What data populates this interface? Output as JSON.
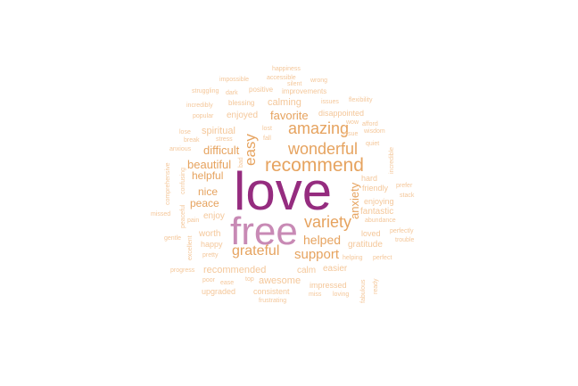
{
  "word_cloud": {
    "colors": {
      "primary": "#952c7f",
      "secondary": "#c88ab5",
      "mid": "#e6a35f",
      "light": "#f4c79a"
    },
    "words": [
      {
        "text": "love",
        "tier": "primary"
      },
      {
        "text": "free",
        "tier": "secondary"
      },
      {
        "text": "recommend",
        "tier": "mid"
      },
      {
        "text": "amazing",
        "tier": "mid"
      },
      {
        "text": "wonderful",
        "tier": "mid"
      },
      {
        "text": "variety",
        "tier": "mid"
      },
      {
        "text": "grateful",
        "tier": "mid"
      },
      {
        "text": "easy",
        "tier": "mid"
      },
      {
        "text": "support",
        "tier": "mid"
      },
      {
        "text": "helped",
        "tier": "mid"
      },
      {
        "text": "favorite",
        "tier": "mid"
      },
      {
        "text": "beautiful",
        "tier": "mid"
      },
      {
        "text": "difficult",
        "tier": "mid"
      },
      {
        "text": "helpful",
        "tier": "mid"
      },
      {
        "text": "peace",
        "tier": "mid"
      },
      {
        "text": "nice",
        "tier": "mid"
      },
      {
        "text": "anxiety",
        "tier": "mid"
      },
      {
        "text": "awesome",
        "tier": "light"
      },
      {
        "text": "recommended",
        "tier": "light"
      },
      {
        "text": "calming",
        "tier": "light"
      },
      {
        "text": "enjoyed",
        "tier": "light"
      },
      {
        "text": "spiritual",
        "tier": "light"
      },
      {
        "text": "fantastic",
        "tier": "light"
      },
      {
        "text": "gratitude",
        "tier": "light"
      },
      {
        "text": "calm",
        "tier": "light"
      },
      {
        "text": "easier",
        "tier": "light"
      },
      {
        "text": "worth",
        "tier": "light"
      },
      {
        "text": "enjoy",
        "tier": "light"
      },
      {
        "text": "disappointed",
        "tier": "light"
      },
      {
        "text": "impressed",
        "tier": "light"
      },
      {
        "text": "consistent",
        "tier": "light"
      },
      {
        "text": "friendly",
        "tier": "light"
      },
      {
        "text": "happy",
        "tier": "light"
      },
      {
        "text": "upgraded",
        "tier": "light"
      },
      {
        "text": "loved",
        "tier": "light"
      },
      {
        "text": "enjoying",
        "tier": "light"
      },
      {
        "text": "hard",
        "tier": "light"
      },
      {
        "text": "blessing",
        "tier": "light"
      },
      {
        "text": "positive",
        "tier": "light"
      },
      {
        "text": "improvements",
        "tier": "light"
      },
      {
        "text": "impossible",
        "tier": "light"
      },
      {
        "text": "accessible",
        "tier": "light"
      },
      {
        "text": "wrong",
        "tier": "light"
      },
      {
        "text": "silent",
        "tier": "light"
      },
      {
        "text": "happiness",
        "tier": "light"
      },
      {
        "text": "struggling",
        "tier": "light"
      },
      {
        "text": "dark",
        "tier": "light"
      },
      {
        "text": "incredibly",
        "tier": "light"
      },
      {
        "text": "popular",
        "tier": "light"
      },
      {
        "text": "issues",
        "tier": "light"
      },
      {
        "text": "flexibility",
        "tier": "light"
      },
      {
        "text": "wow",
        "tier": "light"
      },
      {
        "text": "afford",
        "tier": "light"
      },
      {
        "text": "wisdom",
        "tier": "light"
      },
      {
        "text": "lose",
        "tier": "light"
      },
      {
        "text": "lost",
        "tier": "light"
      },
      {
        "text": "fall",
        "tier": "light"
      },
      {
        "text": "issue",
        "tier": "light"
      },
      {
        "text": "break",
        "tier": "light"
      },
      {
        "text": "stress",
        "tier": "light"
      },
      {
        "text": "quiet",
        "tier": "light"
      },
      {
        "text": "anxious",
        "tier": "light"
      },
      {
        "text": "bad",
        "tier": "light"
      },
      {
        "text": "incredible",
        "tier": "light"
      },
      {
        "text": "comprehensive",
        "tier": "light"
      },
      {
        "text": "confusing",
        "tier": "light"
      },
      {
        "text": "prefer",
        "tier": "light"
      },
      {
        "text": "stack",
        "tier": "light"
      },
      {
        "text": "peaceful",
        "tier": "light"
      },
      {
        "text": "missed",
        "tier": "light"
      },
      {
        "text": "pain",
        "tier": "light"
      },
      {
        "text": "abundance",
        "tier": "light"
      },
      {
        "text": "perfectly",
        "tier": "light"
      },
      {
        "text": "gentle",
        "tier": "light"
      },
      {
        "text": "excellent",
        "tier": "light"
      },
      {
        "text": "trouble",
        "tier": "light"
      },
      {
        "text": "pretty",
        "tier": "light"
      },
      {
        "text": "helping",
        "tier": "light"
      },
      {
        "text": "perfect",
        "tier": "light"
      },
      {
        "text": "progress",
        "tier": "light"
      },
      {
        "text": "poor",
        "tier": "light"
      },
      {
        "text": "ease",
        "tier": "light"
      },
      {
        "text": "top",
        "tier": "light"
      },
      {
        "text": "fabulous",
        "tier": "light"
      },
      {
        "text": "ready",
        "tier": "light"
      },
      {
        "text": "miss",
        "tier": "light"
      },
      {
        "text": "loving",
        "tier": "light"
      },
      {
        "text": "frustrating",
        "tier": "light"
      }
    ]
  }
}
